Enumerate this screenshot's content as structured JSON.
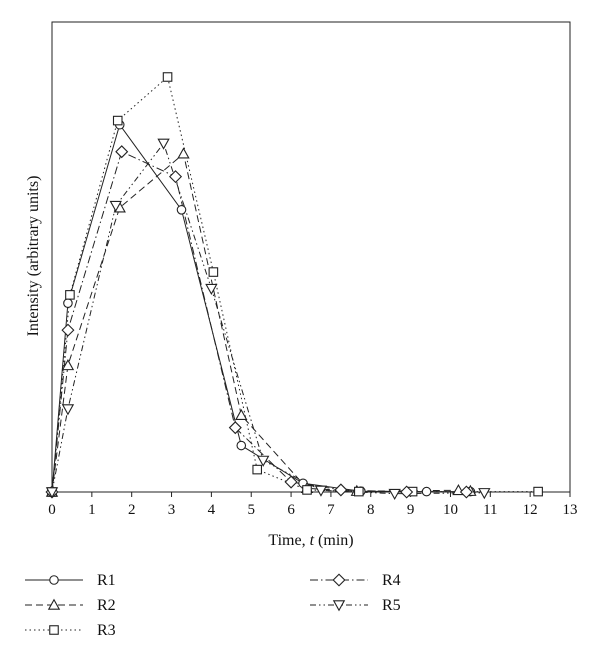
{
  "chart_data": {
    "type": "line",
    "xlabel_prefix": "Time, ",
    "xlabel_var": "t",
    "xlabel_suffix": " (min)",
    "ylabel": "Intensity (arbitrary units)",
    "xlim": [
      0,
      13
    ],
    "ylim": [
      0,
      100
    ],
    "xticks": [
      "0",
      "1",
      "2",
      "3",
      "4",
      "5",
      "6",
      "7",
      "8",
      "9",
      "10",
      "11",
      "12",
      "13"
    ],
    "grid": false,
    "legend_position": "bottom",
    "series": [
      {
        "name": "R1",
        "marker": "circle",
        "dash": "solid",
        "x": [
          0,
          0.4,
          1.7,
          3.25,
          4.75,
          6.3,
          7.75,
          9.4,
          10.5
        ],
        "y": [
          0,
          45.5,
          88.5,
          68,
          11.2,
          2.1,
          0.2,
          0.1,
          0.1
        ]
      },
      {
        "name": "R2",
        "marker": "triangle-up",
        "dash": "dash",
        "x": [
          0,
          0.4,
          1.7,
          3.3,
          4.75,
          6.4,
          7.65,
          10.2,
          10.5
        ],
        "y": [
          0,
          30.5,
          68.5,
          81.5,
          18.5,
          0.9,
          0.2,
          0.4,
          0.2
        ]
      },
      {
        "name": "R3",
        "marker": "square",
        "dash": "dot",
        "x": [
          0,
          0.45,
          1.65,
          2.9,
          4.05,
          5.15,
          6.4,
          7.7,
          9.05,
          12.2
        ],
        "y": [
          0,
          47.5,
          89.5,
          100,
          53,
          5.4,
          0.5,
          0.1,
          0.1,
          0.1
        ]
      },
      {
        "name": "R4",
        "marker": "diamond",
        "dash": "dashdot",
        "x": [
          0,
          0.4,
          1.75,
          3.1,
          4.6,
          6.0,
          7.25,
          8.9,
          10.4
        ],
        "y": [
          0,
          39,
          82,
          76,
          15.5,
          2.4,
          0.5,
          0,
          0
        ]
      },
      {
        "name": "R5",
        "marker": "triangle-down",
        "dash": "dashdotdot",
        "x": [
          0,
          0.4,
          1.6,
          2.8,
          4.0,
          5.3,
          6.75,
          8.6,
          10.85
        ],
        "y": [
          0,
          20,
          69,
          84,
          49,
          7.6,
          0.4,
          -0.4,
          -0.2
        ]
      }
    ]
  }
}
